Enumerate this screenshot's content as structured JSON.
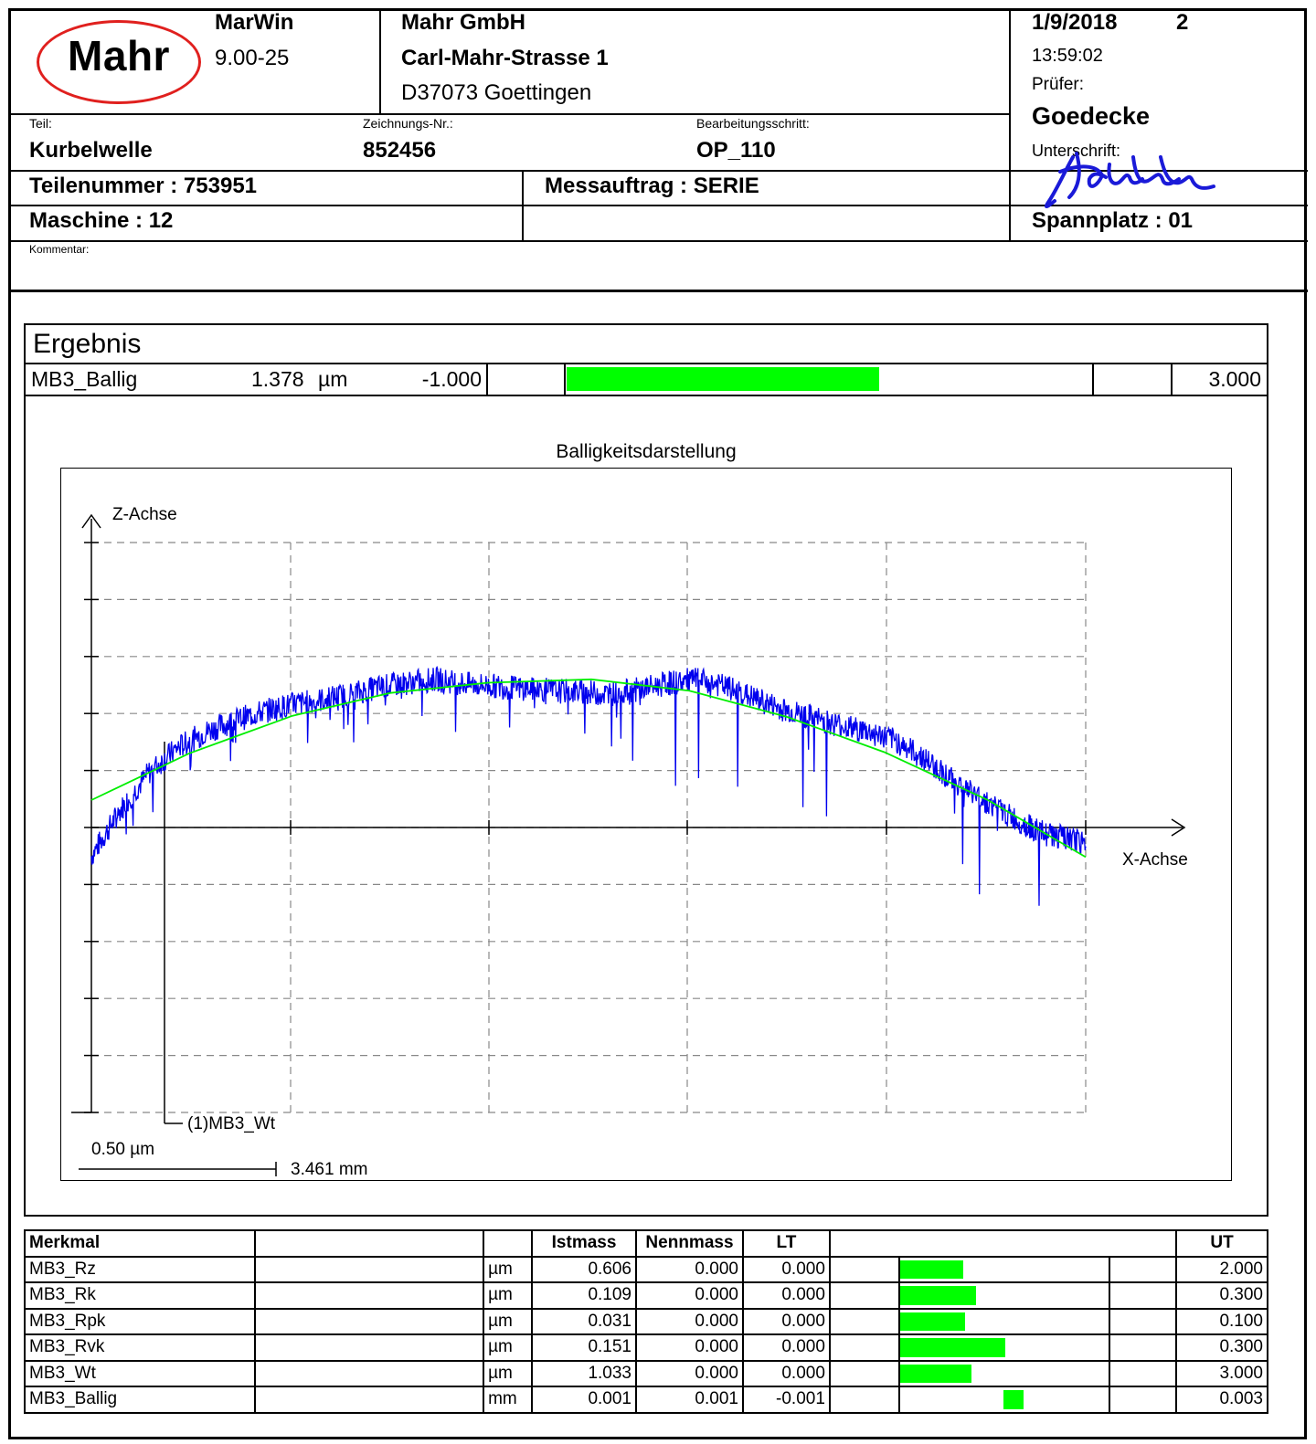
{
  "header": {
    "logo_text": "Mahr",
    "software_name": "MarWin",
    "software_version": "9.00-25",
    "company_name": "Mahr GmbH",
    "company_street": "Carl-Mahr-Strasse 1",
    "company_city": "D37073 Goettingen",
    "date": "1/9/2018",
    "page_number": "2",
    "time": "13:59:02",
    "inspector_label": "Prüfer:",
    "inspector_name": "Goedecke",
    "signature_label": "Unterschrift:",
    "signature_text": "Goedecke",
    "part_label": "Teil:",
    "part_value": "Kurbelwelle",
    "drawing_label": "Zeichnungs-Nr.:",
    "drawing_value": "852456",
    "step_label": "Bearbeitungsschritt:",
    "step_value": "OP_110",
    "part_number": "Teilenummer : 753951",
    "order": "Messauftrag : SERIE",
    "machine": "Maschine : 12",
    "clamp": "Spannplatz : 01",
    "comment_label": "Kommentar:"
  },
  "result": {
    "title": "Ergebnis",
    "name": "MB3_Ballig",
    "value": "1.378",
    "unit": "µm",
    "lower": "-1.000",
    "upper": "3.000",
    "fill_fraction": 0.5945
  },
  "chart_data": {
    "type": "line",
    "title": "Balligkeitsdarstellung",
    "xlabel": "X-Achse",
    "ylabel": "Z-Achse",
    "marker_label": "(1)MB3_Wt",
    "z_scale_label": "0.50 µm",
    "x_scale_label": "3.461 mm",
    "grid": true,
    "colors": {
      "measured": "#0000ee",
      "fit": "#00ee00"
    },
    "series": [
      {
        "x": [
          0,
          0.5,
          1,
          1.5,
          2,
          2.5,
          3,
          3.5,
          4,
          4.5,
          5,
          5.5,
          6,
          6.5,
          7,
          7.5,
          8,
          8.5,
          9,
          9.5,
          10,
          10.5,
          11,
          11.5,
          12,
          12.5,
          13,
          13.5,
          14,
          14.5,
          15,
          15.5,
          16,
          16.5,
          17.3
        ],
        "values": [
          -0.25,
          0.15,
          0.48,
          0.7,
          0.84,
          0.94,
          1.02,
          1.08,
          1.12,
          1.17,
          1.23,
          1.27,
          1.3,
          1.26,
          1.24,
          1.22,
          1.2,
          1.19,
          1.17,
          1.21,
          1.26,
          1.3,
          1.24,
          1.14,
          1.04,
          0.97,
          0.9,
          0.84,
          0.76,
          0.6,
          0.41,
          0.25,
          0.09,
          -0.04,
          -0.14
        ]
      },
      {
        "x": [
          0,
          1.7,
          3.5,
          5.2,
          6.9,
          8.7,
          10.4,
          12.1,
          13.8,
          15.6,
          17.3
        ],
        "values": [
          0.24,
          0.65,
          0.98,
          1.18,
          1.27,
          1.3,
          1.2,
          0.97,
          0.66,
          0.24,
          -0.26
        ]
      }
    ],
    "x_range": [
      0,
      17.3
    ],
    "y_range": [
      -2.5,
      2.5
    ]
  },
  "table": {
    "headers": [
      "Merkmal",
      "",
      "",
      "Istmass",
      "Nennmass",
      "LT",
      "",
      "",
      "UT"
    ],
    "rows": [
      {
        "name": "MB3_Rz",
        "unit": "µm",
        "actual": "0.606",
        "nominal": "0.000",
        "lt": "0.000",
        "ut": "2.000",
        "fill": 0.303
      },
      {
        "name": "MB3_Rk",
        "unit": "µm",
        "actual": "0.109",
        "nominal": "0.000",
        "lt": "0.000",
        "ut": "0.300",
        "fill": 0.363
      },
      {
        "name": "MB3_Rpk",
        "unit": "µm",
        "actual": "0.031",
        "nominal": "0.000",
        "lt": "0.000",
        "ut": "0.100",
        "fill": 0.31
      },
      {
        "name": "MB3_Rvk",
        "unit": "µm",
        "actual": "0.151",
        "nominal": "0.000",
        "lt": "0.000",
        "ut": "0.300",
        "fill": 0.503
      },
      {
        "name": "MB3_Wt",
        "unit": "µm",
        "actual": "1.033",
        "nominal": "0.000",
        "lt": "0.000",
        "ut": "3.000",
        "fill": 0.344
      },
      {
        "name": "MB3_Ballig",
        "unit": "mm",
        "actual": "0.001",
        "nominal": "0.001",
        "lt": "-0.001",
        "ut": "0.003",
        "fill": 0.5
      }
    ]
  }
}
